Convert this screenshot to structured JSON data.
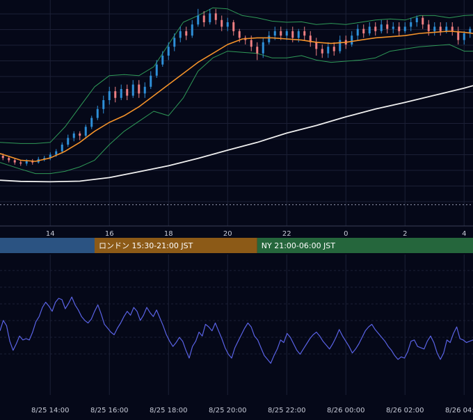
{
  "colors": {
    "background": "#050818",
    "grid": "#1c2036",
    "candle_up": "#2e8fd8",
    "candle_down": "#ef7f82",
    "bollinger": "#2f9a58",
    "ma_short": "#f5932a",
    "ma_long": "#f0f0f0",
    "oscillator": "#5a63e6",
    "session_tokyo": "#2b5382",
    "session_london": "#8c5a17",
    "session_ny": "#25663c"
  },
  "sessions": [
    {
      "label": "",
      "color": "#2b5382",
      "start_hour": 12.3,
      "end_hour": 15.5
    },
    {
      "label": "ロンドン 15:30-21:00 JST",
      "color": "#8c5a17",
      "start_hour": 15.5,
      "end_hour": 21.0
    },
    {
      "label": "NY 21:00-06:00 JST",
      "color": "#25663c",
      "start_hour": 21.0,
      "end_hour": 28.3
    }
  ],
  "chart_data": [
    {
      "type": "candlestick",
      "x_axis_unit": "hour of day (JST), 8/25 12:20 to 8/26 04:20",
      "x_tick_labels": [
        "14",
        "16",
        "18",
        "20",
        "22",
        "0",
        "2",
        "4"
      ],
      "x_tick_hours": [
        14,
        16,
        18,
        20,
        22,
        24,
        26,
        28
      ],
      "xlim": [
        12.3,
        28.3
      ],
      "ylim": [
        0,
        100
      ],
      "y_tick_labels": [],
      "grid": true,
      "dotted_reference_level": 8,
      "series": [
        {
          "name": "",
          "kind": "ma_short",
          "points": [
            [
              12.3,
              31
            ],
            [
              13.0,
              28
            ],
            [
              13.5,
              27.5
            ],
            [
              14.0,
              29
            ],
            [
              14.5,
              32
            ],
            [
              15.0,
              36
            ],
            [
              15.5,
              41
            ],
            [
              16.0,
              45
            ],
            [
              16.5,
              48
            ],
            [
              17.0,
              52
            ],
            [
              17.5,
              57
            ],
            [
              18.0,
              62
            ],
            [
              18.5,
              67
            ],
            [
              19.0,
              72
            ],
            [
              19.5,
              76
            ],
            [
              20.0,
              80
            ],
            [
              20.5,
              82.5
            ],
            [
              21.0,
              83
            ],
            [
              21.5,
              83
            ],
            [
              22.0,
              82.5
            ],
            [
              22.5,
              82
            ],
            [
              23.0,
              81
            ],
            [
              23.5,
              80.5
            ],
            [
              24.0,
              81
            ],
            [
              24.5,
              82
            ],
            [
              25.0,
              83
            ],
            [
              25.5,
              83.5
            ],
            [
              26.0,
              84
            ],
            [
              26.5,
              85
            ],
            [
              27.0,
              85.5
            ],
            [
              27.5,
              86
            ],
            [
              28.0,
              85.5
            ],
            [
              28.3,
              85
            ]
          ]
        },
        {
          "name": "",
          "kind": "ma_long",
          "points": [
            [
              12.3,
              19
            ],
            [
              13.0,
              18.5
            ],
            [
              14.0,
              18.3
            ],
            [
              15.0,
              18.6
            ],
            [
              16.0,
              20.2
            ],
            [
              17.0,
              22.8
            ],
            [
              18.0,
              25.5
            ],
            [
              19.0,
              28.8
            ],
            [
              20.0,
              32.5
            ],
            [
              21.0,
              36
            ],
            [
              22.0,
              40.2
            ],
            [
              23.0,
              43.6
            ],
            [
              24.0,
              47.5
            ],
            [
              25.0,
              51
            ],
            [
              26.0,
              54
            ],
            [
              27.0,
              57.2
            ],
            [
              28.0,
              60.4
            ],
            [
              28.3,
              61.5
            ]
          ]
        },
        {
          "name": "",
          "kind": "bollinger_upper",
          "points": [
            [
              12.3,
              36
            ],
            [
              13.0,
              35.5
            ],
            [
              13.5,
              35.5
            ],
            [
              14.0,
              36
            ],
            [
              14.5,
              43
            ],
            [
              15.0,
              52
            ],
            [
              15.5,
              61
            ],
            [
              16.0,
              66
            ],
            [
              16.5,
              66.5
            ],
            [
              17.0,
              66
            ],
            [
              17.5,
              70
            ],
            [
              18.0,
              80
            ],
            [
              18.5,
              90
            ],
            [
              19.0,
              93
            ],
            [
              19.5,
              96.5
            ],
            [
              20.0,
              96
            ],
            [
              20.5,
              93
            ],
            [
              21.0,
              92
            ],
            [
              21.5,
              90.5
            ],
            [
              22.0,
              90
            ],
            [
              22.5,
              90.2
            ],
            [
              23.0,
              89
            ],
            [
              23.5,
              89.5
            ],
            [
              24.0,
              89
            ],
            [
              24.5,
              90
            ],
            [
              25.0,
              91
            ],
            [
              25.5,
              91.5
            ],
            [
              26.0,
              91
            ],
            [
              26.5,
              93
            ],
            [
              27.0,
              93
            ],
            [
              27.5,
              92
            ],
            [
              28.0,
              93
            ],
            [
              28.3,
              93.2
            ]
          ]
        },
        {
          "name": "",
          "kind": "bollinger_lower",
          "points": [
            [
              12.3,
              27
            ],
            [
              13.0,
              24
            ],
            [
              13.5,
              22
            ],
            [
              14.0,
              22
            ],
            [
              14.5,
              23
            ],
            [
              15.0,
              25
            ],
            [
              15.5,
              28
            ],
            [
              16.0,
              35
            ],
            [
              16.5,
              41
            ],
            [
              17.0,
              45.5
            ],
            [
              17.5,
              50
            ],
            [
              18.0,
              48
            ],
            [
              18.5,
              56
            ],
            [
              19.0,
              68
            ],
            [
              19.5,
              74
            ],
            [
              20.0,
              77
            ],
            [
              20.5,
              76.5
            ],
            [
              21.0,
              76
            ],
            [
              21.5,
              74
            ],
            [
              22.0,
              74
            ],
            [
              22.5,
              75
            ],
            [
              23.0,
              73
            ],
            [
              23.5,
              72
            ],
            [
              24.0,
              72.5
            ],
            [
              24.5,
              73
            ],
            [
              25.0,
              74
            ],
            [
              25.5,
              77
            ],
            [
              26.0,
              78
            ],
            [
              26.5,
              79
            ],
            [
              27.0,
              79.5
            ],
            [
              27.5,
              80
            ],
            [
              28.0,
              77
            ],
            [
              28.3,
              77
            ]
          ]
        }
      ],
      "candles": [
        [
          12.4,
          30,
          29,
          31,
          28
        ],
        [
          12.6,
          29,
          28,
          30,
          27
        ],
        [
          12.8,
          28,
          27,
          29,
          26
        ],
        [
          13.0,
          27,
          26.5,
          28,
          25.5
        ],
        [
          13.2,
          26.5,
          27.5,
          28.5,
          25.5
        ],
        [
          13.4,
          27.5,
          27,
          28.5,
          26
        ],
        [
          13.6,
          27,
          28.5,
          29.5,
          26.5
        ],
        [
          13.8,
          28.5,
          29,
          30,
          27.5
        ],
        [
          14.0,
          29,
          30.5,
          31.5,
          28
        ],
        [
          14.2,
          30.5,
          32,
          33,
          29.5
        ],
        [
          14.4,
          32,
          35,
          36,
          31
        ],
        [
          14.6,
          35,
          38,
          39.5,
          34
        ],
        [
          14.8,
          38,
          40,
          41,
          36.5
        ],
        [
          15.0,
          40,
          39,
          41,
          37
        ],
        [
          15.2,
          39,
          43,
          44,
          38
        ],
        [
          15.4,
          43,
          47,
          48,
          42
        ],
        [
          15.6,
          47,
          51,
          52.5,
          46
        ],
        [
          15.8,
          51,
          55,
          57,
          49
        ],
        [
          16.0,
          55,
          59,
          61,
          53
        ],
        [
          16.2,
          59,
          56,
          61,
          54
        ],
        [
          16.4,
          56,
          60,
          62,
          55
        ],
        [
          16.6,
          60,
          57,
          62,
          55
        ],
        [
          16.8,
          57,
          62,
          64,
          56
        ],
        [
          17.0,
          62,
          58,
          64,
          56
        ],
        [
          17.2,
          58,
          61,
          63,
          56
        ],
        [
          17.4,
          61,
          66,
          68,
          60
        ],
        [
          17.6,
          66,
          71,
          73,
          65
        ],
        [
          17.8,
          71,
          75,
          77,
          70
        ],
        [
          18.0,
          75,
          79,
          81,
          73
        ],
        [
          18.2,
          79,
          83,
          85,
          77
        ],
        [
          18.4,
          83,
          86,
          88,
          81
        ],
        [
          18.6,
          86,
          84,
          88,
          82
        ],
        [
          18.8,
          84,
          89,
          91,
          83
        ],
        [
          19.0,
          89,
          93,
          96,
          88
        ],
        [
          19.2,
          93,
          90,
          95,
          88
        ],
        [
          19.4,
          90,
          94,
          96,
          89
        ],
        [
          19.6,
          94,
          91,
          96,
          89
        ],
        [
          19.8,
          91,
          88,
          93,
          86
        ],
        [
          20.0,
          88,
          90,
          92,
          86
        ],
        [
          20.2,
          90,
          86,
          91,
          84
        ],
        [
          20.4,
          86,
          83,
          87,
          81
        ],
        [
          20.6,
          83,
          82,
          84,
          80
        ],
        [
          20.8,
          82,
          79,
          84,
          77
        ],
        [
          21.0,
          79,
          76,
          81,
          73
        ],
        [
          21.2,
          76,
          81,
          83,
          74
        ],
        [
          21.4,
          81,
          84,
          86,
          80
        ],
        [
          21.6,
          84,
          86,
          88,
          82
        ],
        [
          21.8,
          86,
          84,
          88,
          82
        ],
        [
          22.0,
          84,
          86,
          87,
          82
        ],
        [
          22.2,
          86,
          83,
          88,
          81
        ],
        [
          22.4,
          83,
          86,
          87,
          81
        ],
        [
          22.6,
          86,
          84,
          88,
          82
        ],
        [
          22.8,
          84,
          81,
          86,
          79
        ],
        [
          23.0,
          81,
          78,
          83,
          75
        ],
        [
          23.2,
          78,
          76,
          80,
          74
        ],
        [
          23.4,
          76,
          79,
          81,
          74
        ],
        [
          23.6,
          79,
          77,
          81,
          75
        ],
        [
          23.8,
          77,
          82,
          84,
          76
        ],
        [
          24.0,
          82,
          80,
          84,
          78
        ],
        [
          24.2,
          80,
          84,
          86,
          79
        ],
        [
          24.4,
          84,
          87,
          89,
          82
        ],
        [
          24.6,
          87,
          85,
          89,
          83
        ],
        [
          24.8,
          85,
          88,
          90,
          84
        ],
        [
          25.0,
          88,
          86,
          90,
          84
        ],
        [
          25.2,
          86,
          89,
          91,
          85
        ],
        [
          25.4,
          89,
          87,
          91,
          85
        ],
        [
          25.6,
          87,
          88,
          90,
          85
        ],
        [
          25.8,
          88,
          86,
          90,
          84
        ],
        [
          26.0,
          86,
          88,
          90,
          85
        ],
        [
          26.2,
          88,
          90,
          92,
          86
        ],
        [
          26.4,
          90,
          92,
          93,
          88
        ],
        [
          26.6,
          92,
          89,
          93,
          87
        ],
        [
          26.8,
          89,
          86,
          91,
          84
        ],
        [
          27.0,
          86,
          88,
          90,
          84
        ],
        [
          27.2,
          88,
          86,
          90,
          84
        ],
        [
          27.4,
          86,
          88,
          90,
          85
        ],
        [
          27.6,
          88,
          86,
          90,
          84
        ],
        [
          27.8,
          86,
          82,
          88,
          80
        ],
        [
          28.0,
          82,
          85,
          86,
          80
        ],
        [
          28.2,
          85,
          87,
          88,
          83
        ]
      ]
    },
    {
      "type": "line",
      "series": [
        {
          "name": "",
          "kind": "oscillator",
          "x_start_hour": 12.3,
          "x_end_hour": 28.3,
          "values": [
            52,
            60,
            56,
            44,
            37,
            42,
            48,
            45,
            46,
            45,
            51,
            59,
            63,
            70,
            74,
            71,
            67,
            74,
            77,
            76,
            69,
            73,
            78,
            72,
            68,
            63,
            60,
            58,
            61,
            67,
            72,
            65,
            57,
            54,
            51,
            49,
            54,
            58,
            63,
            67,
            64,
            70,
            67,
            60,
            64,
            70,
            66,
            63,
            68,
            62,
            56,
            49,
            44,
            40,
            43,
            47,
            44,
            37,
            31,
            40,
            44,
            51,
            48,
            57,
            55,
            52,
            58,
            52,
            46,
            39,
            34,
            31,
            39,
            44,
            49,
            54,
            58,
            55,
            48,
            45,
            39,
            33,
            30,
            27,
            33,
            38,
            45,
            43,
            50,
            47,
            42,
            37,
            34,
            38,
            42,
            46,
            49,
            51,
            48,
            44,
            41,
            38,
            42,
            47,
            53,
            48,
            44,
            40,
            35,
            38,
            42,
            47,
            52,
            55,
            57,
            53,
            50,
            47,
            44,
            40,
            37,
            33,
            30,
            32,
            31,
            36,
            44,
            45,
            40,
            39,
            38,
            44,
            48,
            43,
            35,
            30,
            35,
            45,
            43,
            50,
            55,
            46,
            45,
            43,
            44,
            45
          ]
        }
      ],
      "x_tick_labels": [
        "8/25 14:00",
        "8/25 16:00",
        "8/25 18:00",
        "8/25 20:00",
        "8/25 22:00",
        "8/26 00:00",
        "8/26 02:00",
        "8/26 04:00"
      ],
      "x_tick_hours": [
        14,
        16,
        18,
        20,
        22,
        24,
        26,
        28
      ],
      "ylim": [
        0,
        100
      ],
      "grid": true
    }
  ]
}
